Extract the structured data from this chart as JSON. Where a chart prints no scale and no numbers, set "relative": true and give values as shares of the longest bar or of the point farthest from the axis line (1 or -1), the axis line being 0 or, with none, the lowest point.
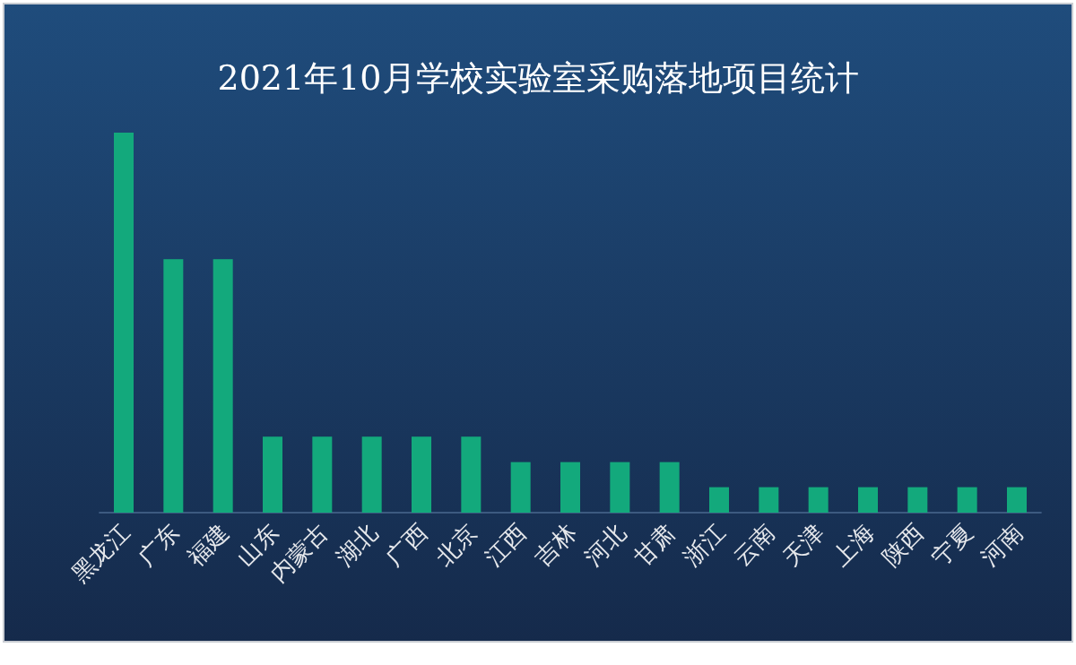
{
  "chart_data": {
    "type": "bar",
    "title": "2021年10月学校实验室采购落地项目统计",
    "relative": true,
    "color": "#13a97c",
    "categories": [
      "黑龙江",
      "广东",
      "福建",
      "山东",
      "内蒙古",
      "湖北",
      "广西",
      "北京",
      "江西",
      "吉林",
      "河北",
      "甘肃",
      "浙江",
      "云南",
      "天津",
      "上海",
      "陕西",
      "宁夏",
      "河南"
    ],
    "values": [
      1,
      0.667,
      0.667,
      0.2,
      0.2,
      0.2,
      0.2,
      0.2,
      0.133,
      0.133,
      0.133,
      0.133,
      0.067,
      0.067,
      0.067,
      0.067,
      0.067,
      0.067,
      0.067
    ]
  }
}
